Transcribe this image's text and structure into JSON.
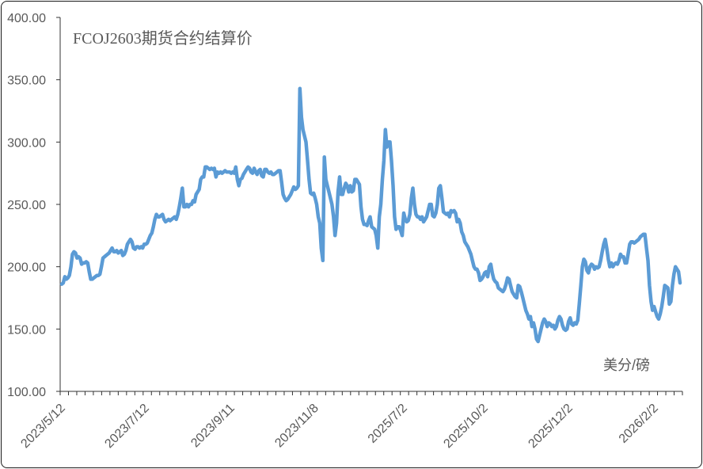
{
  "chart_data": {
    "type": "line",
    "title": "FCOJ2603期货合约结算价",
    "unit_label": "美分/磅",
    "xlabel": "",
    "ylabel": "",
    "ylim": [
      100,
      400
    ],
    "y_ticks": [
      "100.00",
      "150.00",
      "200.00",
      "250.00",
      "300.00",
      "350.00",
      "400.00"
    ],
    "x_tick_labels": [
      "2023/5/12",
      "2023/7/12",
      "2023/9/11",
      "2023/11/8",
      "2025/7/2",
      "2025/10/2",
      "2025/12/2",
      "2026/2/2"
    ],
    "grid": false,
    "legend": "none",
    "colors": {
      "line": "#5b9bd5",
      "axis": "#333333",
      "text": "#595959"
    },
    "series": [
      {
        "values": [
          186,
          187,
          192,
          190,
          191,
          193,
          200,
          210,
          212,
          211,
          207,
          208,
          207,
          202,
          203,
          203,
          204,
          203,
          196,
          190,
          190,
          191,
          192,
          193,
          193,
          194,
          200,
          207,
          208,
          209,
          210,
          211,
          213,
          215,
          212,
          212,
          213,
          211,
          212,
          213,
          209,
          210,
          213,
          218,
          220,
          222,
          220,
          215,
          214,
          216,
          216,
          215,
          216,
          215,
          218,
          218,
          219,
          222,
          225,
          227,
          232,
          238,
          242,
          240,
          240,
          241,
          242,
          238,
          236,
          237,
          238,
          237,
          238,
          239,
          240,
          238,
          242,
          248,
          255,
          263,
          248,
          248,
          250,
          248,
          250,
          250,
          253,
          252,
          258,
          260,
          262,
          270,
          272,
          272,
          280,
          280,
          279,
          278,
          279,
          278,
          279,
          272,
          276,
          275,
          276,
          275,
          276,
          277,
          276,
          276,
          276,
          275,
          276,
          275,
          280,
          270,
          265,
          270,
          271,
          274,
          276,
          278,
          280,
          279,
          276,
          275,
          279,
          276,
          274,
          277,
          278,
          273,
          272,
          278,
          278,
          276,
          275,
          276,
          274,
          274,
          275,
          276,
          277,
          277,
          268,
          258,
          255,
          253,
          254,
          256,
          258,
          261,
          264,
          262,
          263,
          265,
          343,
          320,
          310,
          305,
          300,
          285,
          270,
          259,
          258,
          259,
          255,
          250,
          240,
          235,
          215,
          205,
          288,
          270,
          265,
          260,
          255,
          250,
          240,
          225,
          235,
          260,
          272,
          258,
          258,
          263,
          267,
          265,
          260,
          265,
          260,
          261,
          270,
          270,
          268,
          266,
          248,
          238,
          234,
          234,
          233,
          237,
          240,
          232,
          231,
          230,
          225,
          215,
          240,
          250,
          270,
          285,
          310,
          296,
          300,
          300,
          285,
          265,
          240,
          230,
          232,
          232,
          229,
          225,
          243,
          238,
          236,
          237,
          242,
          255,
          263,
          250,
          242,
          240,
          240,
          238,
          240,
          236,
          238,
          240,
          245,
          250,
          250,
          241,
          240,
          243,
          250,
          263,
          265,
          255,
          244,
          243,
          242,
          243,
          240,
          245,
          244,
          245,
          243,
          236,
          238,
          235,
          228,
          225,
          220,
          218,
          216,
          213,
          210,
          205,
          200,
          198,
          198,
          195,
          189,
          190,
          192,
          195,
          196,
          192,
          200,
          202,
          195,
          190,
          188,
          187,
          183,
          182,
          181,
          180,
          182,
          186,
          191,
          190,
          185,
          180,
          178,
          176,
          175,
          185,
          184,
          180,
          175,
          170,
          165,
          162,
          158,
          160,
          152,
          155,
          150,
          142,
          140,
          145,
          150,
          155,
          158,
          156,
          152,
          155,
          154,
          152,
          153,
          150,
          152,
          157,
          160,
          158,
          153,
          150,
          149,
          150,
          156,
          159,
          154,
          153,
          155,
          154,
          157,
          170,
          185,
          200,
          206,
          204,
          197,
          195,
          200,
          202,
          201,
          198,
          200,
          199,
          200,
          205,
          212,
          218,
          222,
          215,
          206,
          200,
          203,
          200,
          202,
          203,
          202,
          205,
          210,
          208,
          208,
          203,
          203,
          210,
          218,
          220,
          220,
          219,
          220,
          221,
          222,
          224,
          225,
          226,
          226,
          215,
          205,
          185,
          172,
          165,
          168,
          164,
          160,
          158,
          162,
          168,
          176,
          185,
          184,
          183,
          170,
          172,
          185,
          194,
          200,
          198,
          196,
          187
        ]
      }
    ]
  }
}
